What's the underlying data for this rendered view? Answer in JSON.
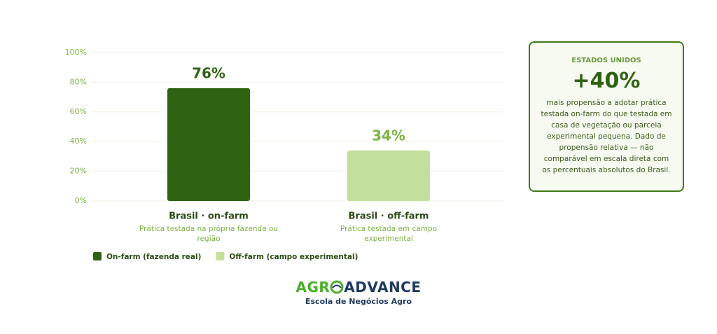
{
  "chart_data": {
    "type": "bar",
    "categories": [
      "Brasil · on-farm",
      "Brasil · off-farm"
    ],
    "category_notes": [
      "Prática testada na própria fazenda ou região",
      "Prática testada em campo experimental"
    ],
    "values": [
      76,
      34
    ],
    "value_labels": [
      "76%",
      "34%"
    ],
    "colors": [
      "#2f6312",
      "#c2df9b"
    ],
    "value_label_colors": [
      "#2f6312",
      "#7cb342"
    ],
    "ylim": [
      0,
      100
    ],
    "yticks": [
      {
        "value": 0,
        "label": "0%"
      },
      {
        "value": 20,
        "label": "20%"
      },
      {
        "value": 40,
        "label": "40%"
      },
      {
        "value": 60,
        "label": "60%"
      },
      {
        "value": 80,
        "label": "80%"
      },
      {
        "value": 100,
        "label": "100%"
      }
    ],
    "grid": true,
    "legend": [
      {
        "name": "On-farm (fazenda real)",
        "color": "#2f6312"
      },
      {
        "name": "Off-farm (campo experimental)",
        "color": "#c2df9b"
      }
    ]
  },
  "card": {
    "heading": "ESTADOS UNIDOS",
    "value": "+40%",
    "text": "mais propensão a adotar prática testada on-farm do que testada em casa de vegetação ou parcela experimental pequena. Dado de propensão relativa — não comparável em escala direta com os percentuais absolutos do Brasil."
  },
  "logo": {
    "part1": "AGR",
    "part2": "ADVANCE",
    "tagline": "Escola de Negócios Agro"
  }
}
